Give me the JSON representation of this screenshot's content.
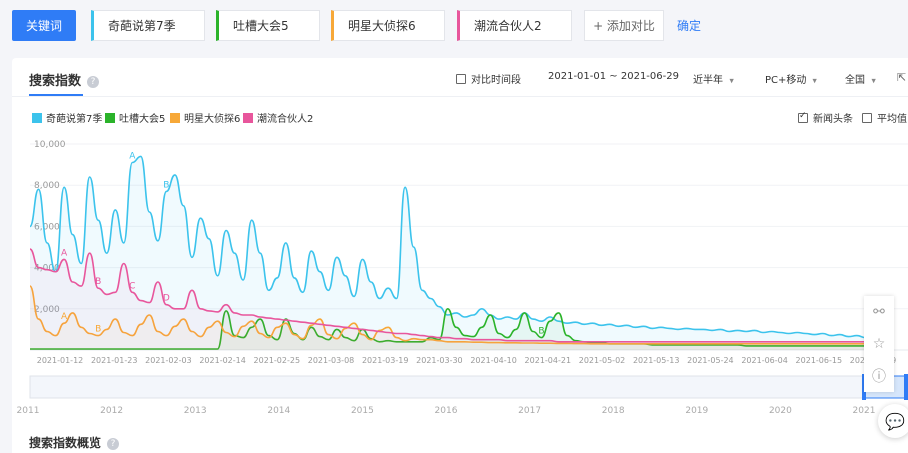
{
  "topbar": {
    "keyword_button": "关键词",
    "keywords": [
      {
        "label": "奇葩说第7季",
        "color": "#3cc3ec"
      },
      {
        "label": "吐槽大会5",
        "color": "#2bb32a"
      },
      {
        "label": "明星大侦探6",
        "color": "#f7a838"
      },
      {
        "label": "潮流合伙人2",
        "color": "#e8569c"
      }
    ],
    "add_compare": "+ 添加对比",
    "confirm": "确定"
  },
  "panel": {
    "title": "搜索指数",
    "help_glyph": "?",
    "compare_period": "对比时间段",
    "date_range": "2021-01-01 ~ 2021-06-29",
    "period": "近半年",
    "device": "PC+移动",
    "region": "全国",
    "news_headline": "新闻头条",
    "average": "平均值",
    "overview_title": "搜索指数概览"
  },
  "chart_data": {
    "type": "line",
    "y_ticks": [
      "10,000",
      "8,000",
      "6,000",
      "4,000",
      "2,000"
    ],
    "ylim": [
      0,
      10000
    ],
    "x_ticks": [
      "2021-01-12",
      "2021-01-23",
      "2021-02-03",
      "2021-02-14",
      "2021-02-25",
      "2021-03-08",
      "2021-03-19",
      "2021-03-30",
      "2021-04-10",
      "2021-04-21",
      "2021-05-02",
      "2021-05-13",
      "2021-05-24",
      "2021-06-04",
      "2021-06-15",
      "2021-06-29"
    ],
    "brush_years": [
      "2011",
      "2012",
      "2013",
      "2014",
      "2015",
      "2016",
      "2017",
      "2018",
      "2019",
      "2020",
      "2021"
    ],
    "series": [
      {
        "name": "奇葩说第7季",
        "color": "#3cc3ec",
        "values": [
          6000,
          7800,
          5200,
          3800,
          7900,
          5600,
          4200,
          8400,
          6300,
          4700,
          6800,
          5200,
          9100,
          9400,
          6700,
          5300,
          7700,
          8500,
          7000,
          4500,
          6400,
          5400,
          3600,
          5800,
          4700,
          3400,
          6300,
          4700,
          2900,
          3500,
          5200,
          3500,
          2800,
          4800,
          3800,
          2900,
          4500,
          3600,
          2600,
          4400,
          3300,
          2500,
          3000,
          2500,
          7900,
          5000,
          2900,
          2500,
          2100,
          1700,
          1800,
          1600,
          1700,
          2000,
          1700,
          1500,
          1600,
          1500,
          1800,
          1500,
          1400,
          1600,
          1400,
          1300,
          1350,
          1250,
          1300,
          1200,
          1250,
          1150,
          1200,
          1100,
          1150,
          1050,
          1100,
          1050,
          1000,
          1050,
          1000,
          1000,
          950,
          1000,
          900,
          950,
          900,
          950,
          850,
          900,
          850,
          800,
          850,
          800,
          750,
          800,
          700,
          750,
          650,
          700,
          600,
          600
        ]
      },
      {
        "name": "吐槽大会5",
        "color": "#2bb32a",
        "values": [
          50,
          50,
          50,
          50,
          50,
          50,
          50,
          50,
          50,
          50,
          50,
          50,
          50,
          50,
          50,
          50,
          50,
          50,
          50,
          50,
          50,
          50,
          50,
          1900,
          700,
          600,
          1100,
          1500,
          700,
          500,
          1500,
          800,
          500,
          1100,
          650,
          500,
          1000,
          600,
          450,
          1000,
          550,
          400,
          450,
          400,
          400,
          400,
          400,
          600,
          500,
          2000,
          1100,
          700,
          650,
          1100,
          1700,
          800,
          600,
          1000,
          1800,
          900,
          600,
          1400,
          1800,
          700,
          450,
          400,
          350,
          350,
          300,
          300,
          300,
          300,
          300,
          250,
          250,
          250,
          250,
          250,
          250,
          250,
          250,
          250,
          250,
          250,
          200,
          200,
          200,
          200,
          200,
          200,
          200,
          200,
          200,
          200,
          200,
          200,
          200,
          200,
          200,
          200
        ]
      },
      {
        "name": "明星大侦探6",
        "color": "#f7a838",
        "values": [
          3100,
          1500,
          900,
          700,
          1300,
          1800,
          1100,
          800,
          700,
          1000,
          1500,
          850,
          700,
          1250,
          1700,
          900,
          700,
          1150,
          1500,
          900,
          650,
          1100,
          1400,
          850,
          650,
          1150,
          1400,
          800,
          600,
          1100,
          1300,
          750,
          550,
          1200,
          1500,
          750,
          550,
          1050,
          1300,
          750,
          500,
          950,
          1100,
          600,
          450,
          550,
          500,
          500,
          450,
          400,
          400,
          400,
          380,
          380,
          360,
          360,
          350,
          350,
          340,
          340,
          330,
          330,
          320,
          320,
          310,
          310,
          300,
          300,
          300,
          300,
          300,
          300,
          300,
          300,
          300,
          300,
          300,
          300,
          300,
          300,
          300,
          300,
          300,
          300,
          300,
          300,
          300,
          300,
          300,
          300,
          300,
          300,
          300,
          300,
          300,
          300,
          300,
          300,
          300,
          300
        ]
      },
      {
        "name": "潮流合伙人2",
        "color": "#e8569c",
        "values": [
          4900,
          4000,
          3900,
          3800,
          4400,
          3300,
          3100,
          4700,
          3000,
          2700,
          2800,
          4200,
          2800,
          2400,
          2300,
          3300,
          2200,
          2000,
          2000,
          2900,
          2000,
          1900,
          1850,
          2200,
          1800,
          1700,
          1700,
          1600,
          1550,
          1500,
          1450,
          1400,
          1350,
          1300,
          1250,
          1200,
          1150,
          1100,
          1050,
          1000,
          950,
          900,
          850,
          800,
          800,
          750,
          700,
          650,
          600,
          600,
          550,
          550,
          500,
          500,
          500,
          500,
          450,
          450,
          450,
          450,
          450,
          450,
          400,
          400,
          400,
          400,
          400,
          400,
          400,
          400,
          400,
          400,
          400,
          400,
          400,
          400,
          400,
          400,
          400,
          400,
          400,
          400,
          400,
          400,
          400,
          400,
          400,
          400,
          400,
          400,
          400,
          400,
          400,
          400,
          400,
          400,
          400,
          400,
          400,
          400
        ]
      }
    ],
    "annotations": [
      {
        "series": 0,
        "index": 12,
        "label": "A"
      },
      {
        "series": 0,
        "index": 16,
        "label": "B"
      },
      {
        "series": 3,
        "index": 4,
        "label": "A"
      },
      {
        "series": 3,
        "index": 8,
        "label": "B"
      },
      {
        "series": 3,
        "index": 12,
        "label": "C"
      },
      {
        "series": 3,
        "index": 16,
        "label": "D"
      },
      {
        "series": 2,
        "index": 4,
        "label": "A"
      },
      {
        "series": 2,
        "index": 8,
        "label": "B"
      },
      {
        "series": 1,
        "index": 60,
        "label": "B"
      }
    ]
  }
}
